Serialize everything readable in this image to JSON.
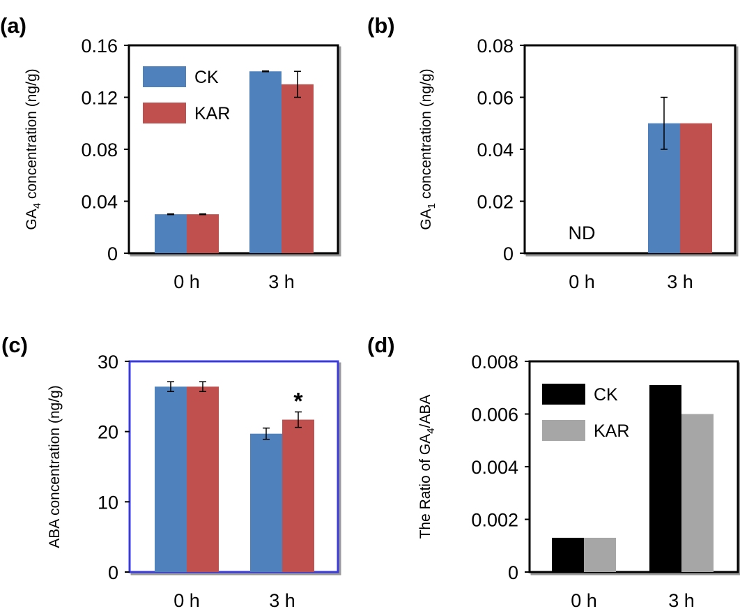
{
  "figure": {
    "colors": {
      "ck": "#4f81bd",
      "kar": "#c0504d",
      "ck_bw": "#000000",
      "kar_bw": "#a6a6a6",
      "frame": "#000000",
      "frame_c": "#3b3bdc"
    }
  },
  "chart_data": [
    {
      "panel": "(a)",
      "type": "bar",
      "categories": [
        "0 h",
        "3 h"
      ],
      "series": [
        {
          "name": "CK",
          "values": [
            0.03,
            0.14
          ],
          "errors": [
            0.0003,
            0.0003
          ]
        },
        {
          "name": "KAR",
          "values": [
            0.03,
            0.13
          ],
          "errors": [
            0.0003,
            0.01
          ]
        }
      ],
      "ylabel": {
        "pre": "GA",
        "sub": "4",
        "post": " concentration (ng/g)"
      },
      "ylim": [
        0,
        0.16
      ],
      "yticks": [
        "0",
        "0.04",
        "0.08",
        "0.12",
        "0.16"
      ],
      "legend": "top-left",
      "annotations": []
    },
    {
      "panel": "(b)",
      "type": "bar",
      "categories": [
        "0 h",
        "3 h"
      ],
      "series": [
        {
          "name": "CK",
          "values": [
            null,
            0.05
          ],
          "errors": [
            null,
            0.01
          ]
        },
        {
          "name": "KAR",
          "values": [
            null,
            0.05
          ],
          "errors": [
            null,
            0
          ]
        }
      ],
      "ylabel": {
        "pre": "GA",
        "sub": "1",
        "post": " concentration (ng/g)"
      },
      "ylim": [
        0,
        0.08
      ],
      "yticks": [
        "0",
        "0.02",
        "0.04",
        "0.06",
        "0.08"
      ],
      "legend": "none",
      "annotations": [
        {
          "text": "ND",
          "category": "0 h"
        }
      ]
    },
    {
      "panel": "(c)",
      "type": "bar",
      "categories": [
        "0 h",
        "3 h"
      ],
      "series": [
        {
          "name": "CK",
          "values": [
            26.4,
            19.7
          ],
          "errors": [
            0.7,
            0.8
          ]
        },
        {
          "name": "KAR",
          "values": [
            26.4,
            21.7
          ],
          "errors": [
            0.7,
            1.1
          ]
        }
      ],
      "ylabel": {
        "pre": "ABA concentration (ng/g)",
        "sub": "",
        "post": ""
      },
      "ylim": [
        0,
        30
      ],
      "yticks": [
        "0",
        "10",
        "20",
        "30"
      ],
      "legend": "none",
      "annotations": [
        {
          "text": "*",
          "category": "3 h",
          "series": "KAR"
        }
      ]
    },
    {
      "panel": "(d)",
      "type": "bar",
      "categories": [
        "0 h",
        "3 h"
      ],
      "series": [
        {
          "name": "CK",
          "values": [
            0.0013,
            0.0071
          ],
          "errors": []
        },
        {
          "name": "KAR",
          "values": [
            0.0013,
            0.006
          ],
          "errors": []
        }
      ],
      "ylabel": {
        "pre": "The Ratio of GA",
        "sub": "4",
        "post": "/ABA"
      },
      "ylim": [
        0,
        0.008
      ],
      "yticks": [
        "0",
        "0.002",
        "0.004",
        "0.006",
        "0.008"
      ],
      "legend": "top-left",
      "annotations": []
    }
  ]
}
